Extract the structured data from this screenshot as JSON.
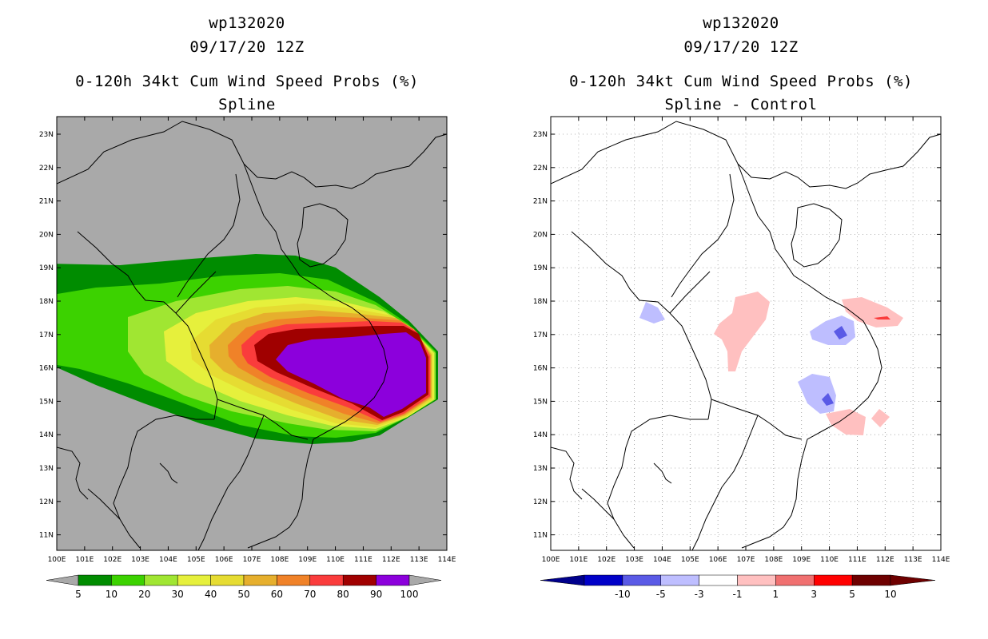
{
  "left_panel": {
    "title_line1": "wp132020",
    "title_line2": "09/17/20 12Z",
    "title_line3": "0-120h 34kt Cum Wind Speed Probs (%)",
    "title_line4": "Spline",
    "lat_labels": [
      "23N",
      "22N",
      "21N",
      "20N",
      "19N",
      "18N",
      "17N",
      "16N",
      "15N",
      "14N",
      "13N",
      "12N",
      "11N"
    ],
    "lon_labels": [
      "100E",
      "101E",
      "102E",
      "103E",
      "104E",
      "105E",
      "106E",
      "107E",
      "108E",
      "109E",
      "110E",
      "111E",
      "112E",
      "113E",
      "114E"
    ],
    "colorbar": {
      "labels": [
        "5",
        "10",
        "20",
        "30",
        "40",
        "50",
        "60",
        "70",
        "80",
        "90",
        "100"
      ],
      "colors": [
        "#008c00",
        "#3cd200",
        "#a0e632",
        "#e6f03c",
        "#e6dc32",
        "#e6af2d",
        "#f08228",
        "#fa3c3c",
        "#a00000",
        "#8c00dc"
      ]
    }
  },
  "right_panel": {
    "title_line1": "wp132020",
    "title_line2": "09/17/20 12Z",
    "title_line3": "0-120h 34kt Cum Wind Speed Probs (%)",
    "title_line4": "Spline - Control",
    "lat_labels": [
      "23N",
      "22N",
      "21N",
      "20N",
      "19N",
      "18N",
      "17N",
      "16N",
      "15N",
      "14N",
      "13N",
      "12N",
      "11N"
    ],
    "lon_labels": [
      "100E",
      "101E",
      "102E",
      "103E",
      "104E",
      "105E",
      "106E",
      "107E",
      "108E",
      "109E",
      "110E",
      "111E",
      "112E",
      "113E",
      "114E"
    ],
    "colorbar": {
      "labels": [
        "-10",
        "-5",
        "-3",
        "-1",
        "1",
        "3",
        "5",
        "10"
      ],
      "colors": [
        "#0000c8",
        "#5a5ae6",
        "#bebeff",
        "#ffffff",
        "#ffc0c0",
        "#f07070",
        "#ff0000",
        "#6e0000"
      ],
      "end_left": "#00008c",
      "end_right": "#6e0000"
    }
  }
}
